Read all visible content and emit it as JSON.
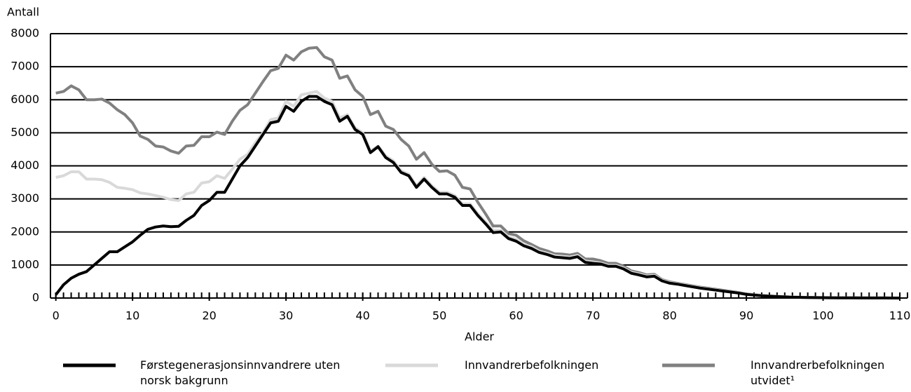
{
  "chart_data": {
    "type": "line",
    "ylabel": "Antall",
    "xlabel": "Alder",
    "x": [
      0,
      1,
      2,
      3,
      4,
      5,
      6,
      7,
      8,
      9,
      10,
      11,
      12,
      13,
      14,
      15,
      16,
      17,
      18,
      19,
      20,
      21,
      22,
      23,
      24,
      25,
      26,
      27,
      28,
      29,
      30,
      31,
      32,
      33,
      34,
      35,
      36,
      37,
      38,
      39,
      40,
      41,
      42,
      43,
      44,
      45,
      46,
      47,
      48,
      49,
      50,
      51,
      52,
      53,
      54,
      55,
      56,
      57,
      58,
      59,
      60,
      61,
      62,
      63,
      64,
      65,
      66,
      67,
      68,
      69,
      70,
      71,
      72,
      73,
      74,
      75,
      76,
      77,
      78,
      79,
      80,
      81,
      82,
      83,
      84,
      85,
      86,
      87,
      88,
      89,
      90,
      91,
      92,
      93,
      94,
      95,
      96,
      97,
      98,
      99,
      100,
      101,
      102,
      103,
      104,
      105,
      106,
      107,
      108,
      109,
      110
    ],
    "series": [
      {
        "name": "Innvandrerbefolkningen utvidet¹",
        "color": "#808080",
        "values": [
          6200,
          6250,
          6420,
          6300,
          6000,
          6000,
          6020,
          5900,
          5700,
          5550,
          5300,
          4900,
          4800,
          4600,
          4570,
          4450,
          4380,
          4600,
          4620,
          4880,
          4880,
          5020,
          4950,
          5350,
          5680,
          5850,
          6200,
          6550,
          6880,
          6950,
          7350,
          7200,
          7450,
          7560,
          7580,
          7300,
          7200,
          6650,
          6720,
          6300,
          6100,
          5550,
          5650,
          5200,
          5100,
          4800,
          4600,
          4200,
          4400,
          4050,
          3830,
          3850,
          3720,
          3350,
          3300,
          2900,
          2550,
          2180,
          2180,
          1950,
          1900,
          1730,
          1620,
          1500,
          1430,
          1340,
          1330,
          1300,
          1350,
          1180,
          1180,
          1130,
          1050,
          1050,
          960,
          820,
          770,
          700,
          720,
          560,
          490,
          450,
          410,
          370,
          330,
          300,
          265,
          235,
          200,
          165,
          125,
          100,
          80,
          62,
          50,
          40,
          30,
          24,
          18,
          14,
          11,
          9,
          7,
          6,
          5,
          4,
          3,
          3,
          2,
          2,
          1
        ]
      },
      {
        "name": "Innvandrerbefolkningen",
        "color": "#d9d9d9",
        "values": [
          3650,
          3700,
          3820,
          3820,
          3600,
          3600,
          3580,
          3500,
          3350,
          3320,
          3280,
          3180,
          3150,
          3100,
          3050,
          2980,
          2950,
          3150,
          3200,
          3480,
          3520,
          3700,
          3620,
          3900,
          4200,
          4350,
          4700,
          5000,
          5400,
          5450,
          5950,
          5800,
          6150,
          6200,
          6250,
          6050,
          5950,
          5450,
          5550,
          5150,
          5000,
          4450,
          4600,
          4300,
          4150,
          3850,
          3750,
          3400,
          3650,
          3400,
          3200,
          3200,
          3100,
          2850,
          2850,
          2550,
          2300,
          2050,
          2050,
          1850,
          1780,
          1620,
          1550,
          1420,
          1360,
          1280,
          1260,
          1240,
          1290,
          1120,
          1090,
          1060,
          990,
          990,
          910,
          780,
          730,
          670,
          690,
          540,
          470,
          435,
          395,
          355,
          315,
          285,
          250,
          220,
          190,
          155,
          115,
          95,
          75,
          58,
          47,
          37,
          27,
          21,
          16,
          13,
          10,
          8,
          6,
          5,
          4,
          3,
          3,
          2,
          2,
          1,
          1
        ]
      },
      {
        "name": "Førstegenerasjonsinnvandrere uten norsk bakgrunn",
        "color": "#000000",
        "values": [
          100,
          400,
          600,
          720,
          800,
          1000,
          1200,
          1400,
          1400,
          1550,
          1700,
          1900,
          2080,
          2150,
          2180,
          2160,
          2170,
          2350,
          2500,
          2800,
          2950,
          3200,
          3200,
          3600,
          4000,
          4250,
          4600,
          4950,
          5300,
          5350,
          5800,
          5650,
          5950,
          6100,
          6100,
          5950,
          5850,
          5350,
          5500,
          5100,
          4950,
          4400,
          4580,
          4250,
          4100,
          3800,
          3700,
          3350,
          3600,
          3350,
          3150,
          3150,
          3050,
          2800,
          2800,
          2500,
          2250,
          1980,
          2000,
          1800,
          1720,
          1580,
          1500,
          1380,
          1320,
          1240,
          1220,
          1200,
          1250,
          1080,
          1050,
          1030,
          960,
          960,
          880,
          750,
          700,
          640,
          660,
          520,
          450,
          420,
          380,
          340,
          300,
          270,
          240,
          210,
          180,
          150,
          110,
          90,
          70,
          55,
          45,
          35,
          25,
          20,
          15,
          12,
          10,
          8,
          6,
          5,
          4,
          3,
          3,
          2,
          2,
          1,
          1
        ]
      }
    ],
    "xlim": [
      -0.7,
      111
    ],
    "xticks": [
      0,
      10,
      20,
      30,
      40,
      50,
      60,
      70,
      80,
      90,
      100,
      110
    ],
    "xminor": 1,
    "ylim": [
      0,
      8000
    ],
    "yticks": [
      0,
      1000,
      2000,
      3000,
      4000,
      5000,
      6000,
      7000,
      8000
    ],
    "grid": true
  }
}
